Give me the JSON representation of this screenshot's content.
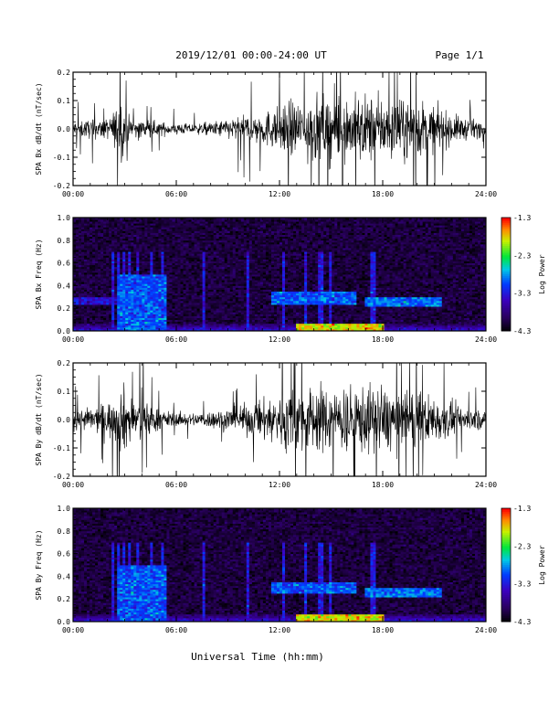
{
  "header": {
    "title": "2019/12/01  00:00-24:00 UT",
    "page": "Page 1/1"
  },
  "chart_data": [
    {
      "type": "line",
      "ylabel": "SPA Bx dB/dt (nT/sec)",
      "xlim": [
        0,
        24
      ],
      "ylim": [
        -0.2,
        0.2
      ],
      "x_ticks": [
        "00:00",
        "06:00",
        "12:00",
        "18:00",
        "24:00"
      ],
      "y_ticks": [
        "-0.2",
        "-0.1",
        "0.0",
        "0.1",
        "0.2"
      ],
      "series": [
        {
          "x": [
            0,
            1,
            2,
            2.5,
            2.8,
            3,
            3.5,
            4,
            4.5,
            5,
            6,
            7,
            8,
            9,
            10,
            11,
            12,
            12.5,
            13,
            14,
            15,
            16,
            17,
            18,
            19,
            20,
            21,
            22,
            23,
            24
          ],
          "amplitude": [
            0.05,
            0.055,
            0.06,
            0.12,
            0.2,
            0.09,
            0.06,
            0.065,
            0.05,
            0.04,
            0.035,
            0.03,
            0.04,
            0.06,
            0.08,
            0.1,
            0.13,
            0.16,
            0.17,
            0.2,
            0.2,
            0.2,
            0.2,
            0.18,
            0.17,
            0.18,
            0.13,
            0.09,
            0.06,
            0.05
          ]
        }
      ]
    },
    {
      "type": "heatmap",
      "ylabel": "SPA Bx Freq (Hz)",
      "xlim": [
        0,
        24
      ],
      "ylim": [
        0.0,
        1.0
      ],
      "x_ticks": [
        "00:00",
        "06:00",
        "12:00",
        "18:00",
        "24:00"
      ],
      "y_ticks": [
        "0.0",
        "0.2",
        "0.4",
        "0.6",
        "0.8",
        "1.0"
      ],
      "colorbar": {
        "label": "Log Power",
        "range": [
          -4.3,
          -1.3
        ],
        "ticks": [
          "-1.3",
          "-2.3",
          "-3.3",
          "-4.3"
        ]
      },
      "bright_bands": [
        {
          "x": [
            0.0,
            2.5
          ],
          "freq": [
            0.24,
            0.3
          ],
          "level": -3.4
        },
        {
          "x": [
            2.5,
            5.5
          ],
          "freq": [
            0.0,
            0.5
          ],
          "level": -3.0
        },
        {
          "x": [
            11.5,
            16.5
          ],
          "freq": [
            0.24,
            0.35
          ],
          "level": -3.0
        },
        {
          "x": [
            17.0,
            21.5
          ],
          "freq": [
            0.22,
            0.3
          ],
          "level": -2.9
        },
        {
          "x": [
            13.0,
            18.0
          ],
          "freq": [
            0.0,
            0.06
          ],
          "level": -1.8
        }
      ]
    },
    {
      "type": "line",
      "ylabel": "SPA By dB/dt (nT/sec)",
      "xlim": [
        0,
        24
      ],
      "ylim": [
        -0.2,
        0.2
      ],
      "x_ticks": [
        "00:00",
        "06:00",
        "12:00",
        "18:00",
        "24:00"
      ],
      "y_ticks": [
        "-0.2",
        "-0.1",
        "0.0",
        "0.1",
        "0.2"
      ],
      "series": [
        {
          "x": [
            0,
            1,
            2,
            2.5,
            2.8,
            3,
            3.5,
            4,
            4.5,
            5,
            6,
            7,
            8,
            9,
            10,
            11,
            12,
            12.5,
            13,
            14,
            15,
            16,
            17,
            18,
            19,
            20,
            21,
            22,
            23,
            24
          ],
          "amplitude": [
            0.06,
            0.07,
            0.1,
            0.15,
            0.2,
            0.2,
            0.12,
            0.14,
            0.1,
            0.06,
            0.04,
            0.04,
            0.05,
            0.07,
            0.09,
            0.12,
            0.16,
            0.2,
            0.2,
            0.2,
            0.2,
            0.2,
            0.2,
            0.2,
            0.17,
            0.16,
            0.14,
            0.1,
            0.07,
            0.05
          ]
        }
      ]
    },
    {
      "type": "heatmap",
      "ylabel": "SPA By Freq (Hz)",
      "xlim": [
        0,
        24
      ],
      "ylim": [
        0.0,
        1.0
      ],
      "x_ticks": [
        "00:00",
        "06:00",
        "12:00",
        "18:00",
        "24:00"
      ],
      "y_ticks": [
        "0.0",
        "0.2",
        "0.4",
        "0.6",
        "0.8",
        "1.0"
      ],
      "colorbar": {
        "label": "Log Power",
        "range": [
          -4.3,
          -1.3
        ],
        "ticks": [
          "-1.3",
          "-2.3",
          "-3.3",
          "-4.3"
        ]
      },
      "bright_bands": [
        {
          "x": [
            2.5,
            5.5
          ],
          "freq": [
            0.0,
            0.5
          ],
          "level": -3.0
        },
        {
          "x": [
            11.5,
            16.5
          ],
          "freq": [
            0.25,
            0.35
          ],
          "level": -3.0
        },
        {
          "x": [
            17.0,
            21.5
          ],
          "freq": [
            0.22,
            0.3
          ],
          "level": -2.9
        },
        {
          "x": [
            13.0,
            18.0
          ],
          "freq": [
            0.0,
            0.06
          ],
          "level": -1.8
        }
      ]
    }
  ],
  "xlabel": "Universal Time (hh:mm)"
}
